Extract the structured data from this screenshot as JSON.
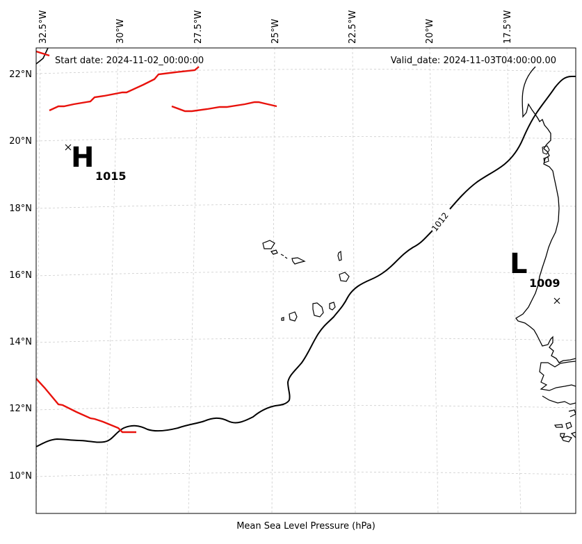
{
  "header": {
    "start_date": "Start date: 2024-11-02_00:00:00",
    "valid_date": "Valid_date: 2024-11-03T04:00:00.00"
  },
  "xlabel": "Mean Sea Level Pressure (hPa)",
  "lon_ticks": [
    "32.5°W",
    "30°W",
    "27.5°W",
    "25°W",
    "22.5°W",
    "20°W",
    "17.5°W"
  ],
  "lat_ticks": [
    "22°N",
    "20°N",
    "18°N",
    "16°N",
    "14°N",
    "12°N",
    "10°N"
  ],
  "isobar_labels": [
    "1012"
  ],
  "pressure_centers": [
    {
      "symbol": "H",
      "value": "1015"
    },
    {
      "symbol": "L",
      "value": "1009"
    }
  ],
  "colors": {
    "isobar": "#000000",
    "front": "#e8120c",
    "coast": "#000000",
    "grid": "#cccccc"
  }
}
